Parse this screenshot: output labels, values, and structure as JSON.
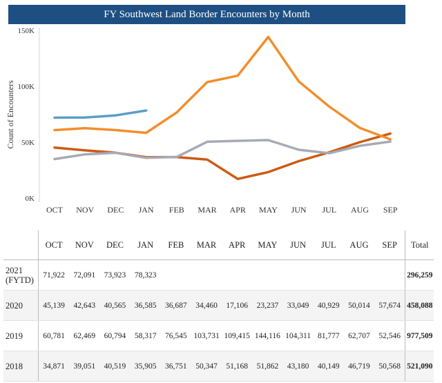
{
  "chart_data": {
    "type": "line",
    "title": "FY Southwest Land Border Encounters by Month",
    "ylabel": "Count of Encounters",
    "xlabel": "",
    "categories": [
      "OCT",
      "NOV",
      "DEC",
      "JAN",
      "FEB",
      "MAR",
      "APR",
      "MAY",
      "JUN",
      "JUL",
      "AUG",
      "SEP"
    ],
    "ylim": [
      0,
      150000
    ],
    "yticks": [
      0,
      50000,
      100000,
      150000
    ],
    "ytick_labels": [
      "0K",
      "50K",
      "100K",
      "150K"
    ],
    "grid": false,
    "series": [
      {
        "name": "2021 (FYTD)",
        "color": "#5b9dc9",
        "values": [
          71922,
          72091,
          73923,
          78323,
          null,
          null,
          null,
          null,
          null,
          null,
          null,
          null
        ]
      },
      {
        "name": "2020",
        "color": "#cc5a12",
        "values": [
          45139,
          42643,
          40565,
          36585,
          36687,
          34460,
          17106,
          23237,
          33049,
          40929,
          50014,
          57674
        ]
      },
      {
        "name": "2019",
        "color": "#f28e2b",
        "values": [
          60781,
          62469,
          60794,
          58317,
          76545,
          103731,
          109415,
          144116,
          104311,
          81777,
          62707,
          52546
        ]
      },
      {
        "name": "2018",
        "color": "#a7a9b6",
        "values": [
          34871,
          39051,
          40519,
          35905,
          36751,
          50347,
          51168,
          51862,
          43180,
          40149,
          46719,
          50568
        ]
      }
    ]
  },
  "table": {
    "columns": [
      "OCT",
      "NOV",
      "DEC",
      "JAN",
      "FEB",
      "MAR",
      "APR",
      "MAY",
      "JUN",
      "JUL",
      "AUG",
      "SEP"
    ],
    "total_label": "Total",
    "rows": [
      {
        "label_line1": "2021",
        "label_line2": "(FYTD)",
        "cells": [
          "71,922",
          "72,091",
          "73,923",
          "78,323",
          "",
          "",
          "",
          "",
          "",
          "",
          "",
          ""
        ],
        "total": "296,259"
      },
      {
        "label_line1": "2020",
        "label_line2": "",
        "cells": [
          "45,139",
          "42,643",
          "40,565",
          "36,585",
          "36,687",
          "34,460",
          "17,106",
          "23,237",
          "33,049",
          "40,929",
          "50,014",
          "57,674"
        ],
        "total": "458,088"
      },
      {
        "label_line1": "2019",
        "label_line2": "",
        "cells": [
          "60,781",
          "62,469",
          "60,794",
          "58,317",
          "76,545",
          "103,731",
          "109,415",
          "144,116",
          "104,311",
          "81,777",
          "62,707",
          "52,546"
        ],
        "total": "977,509"
      },
      {
        "label_line1": "2018",
        "label_line2": "",
        "cells": [
          "34,871",
          "39,051",
          "40,519",
          "35,905",
          "36,751",
          "50,347",
          "51,168",
          "51,862",
          "43,180",
          "40,149",
          "46,719",
          "50,568"
        ],
        "total": "521,090"
      }
    ]
  }
}
